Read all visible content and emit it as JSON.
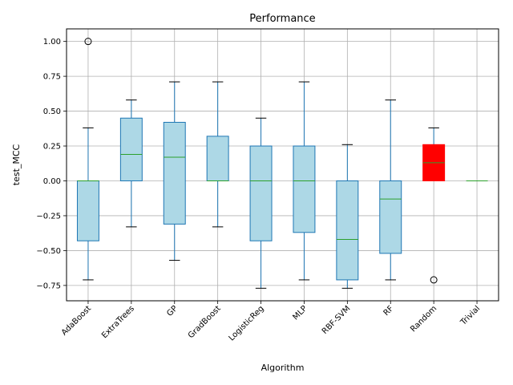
{
  "chart_data": {
    "type": "boxplot",
    "title": "Performance",
    "xlabel": "Algorithm",
    "ylabel": "test_MCC",
    "ylim": [
      -0.86,
      1.09
    ],
    "yticks": [
      1.0,
      0.75,
      0.5,
      0.25,
      0.0,
      -0.25,
      -0.5,
      -0.75
    ],
    "ytick_labels": [
      "1.00",
      "0.75",
      "0.50",
      "0.25",
      "0.00",
      "−0.25",
      "−0.50",
      "−0.75"
    ],
    "grid": true,
    "colors": {
      "box_fill": "#add8e6",
      "highlight_fill": "#ff0000",
      "box_edge": "#1f77b4",
      "median": "#2ca02c",
      "grid": "#b0b0b0"
    },
    "categories": [
      "AdaBoost",
      "ExtraTrees",
      "GP",
      "GradBoost",
      "LogisticReg",
      "MLP",
      "RBF-SVM",
      "RF",
      "Random",
      "Trivial"
    ],
    "boxes": [
      {
        "name": "AdaBoost",
        "whisker_low": -0.71,
        "q1": -0.43,
        "median": 0.0,
        "q3": 0.0,
        "whisker_high": 0.38,
        "outliers": [
          1.0
        ],
        "highlight": false
      },
      {
        "name": "ExtraTrees",
        "whisker_low": -0.33,
        "q1": 0.0,
        "median": 0.19,
        "q3": 0.45,
        "whisker_high": 0.58,
        "outliers": [],
        "highlight": false
      },
      {
        "name": "GP",
        "whisker_low": -0.57,
        "q1": -0.31,
        "median": 0.17,
        "q3": 0.42,
        "whisker_high": 0.71,
        "outliers": [],
        "highlight": false
      },
      {
        "name": "GradBoost",
        "whisker_low": -0.33,
        "q1": 0.0,
        "median": 0.0,
        "q3": 0.32,
        "whisker_high": 0.71,
        "outliers": [],
        "highlight": false
      },
      {
        "name": "LogisticReg",
        "whisker_low": -0.77,
        "q1": -0.43,
        "median": 0.0,
        "q3": 0.25,
        "whisker_high": 0.45,
        "outliers": [],
        "highlight": false
      },
      {
        "name": "MLP",
        "whisker_low": -0.71,
        "q1": -0.37,
        "median": 0.0,
        "q3": 0.25,
        "whisker_high": 0.71,
        "outliers": [],
        "highlight": false
      },
      {
        "name": "RBF-SVM",
        "whisker_low": -0.77,
        "q1": -0.71,
        "median": -0.42,
        "q3": 0.0,
        "whisker_high": 0.26,
        "outliers": [],
        "highlight": false
      },
      {
        "name": "RF",
        "whisker_low": -0.71,
        "q1": -0.52,
        "median": -0.13,
        "q3": 0.0,
        "whisker_high": 0.58,
        "outliers": [],
        "highlight": false
      },
      {
        "name": "Random",
        "whisker_low": 0.0,
        "q1": 0.0,
        "median": 0.13,
        "q3": 0.26,
        "whisker_high": 0.38,
        "outliers": [
          -0.71
        ],
        "highlight": true
      },
      {
        "name": "Trivial",
        "whisker_low": 0.0,
        "q1": 0.0,
        "median": 0.0,
        "q3": 0.0,
        "whisker_high": 0.0,
        "outliers": [],
        "highlight": false
      }
    ]
  }
}
